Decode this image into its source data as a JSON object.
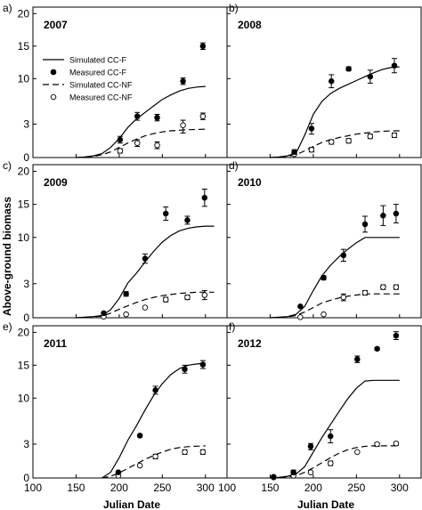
{
  "figure": {
    "ylabel": "Above-ground biomass",
    "xlabel": "Julian Date",
    "xticks": [
      100,
      150,
      200,
      250,
      300
    ],
    "yticks": [
      0,
      3,
      10,
      15,
      20
    ],
    "legend": [
      "Simulated CC-F",
      "Measured CC-F",
      "Simulated CC-NF",
      "Measured CC-NF"
    ]
  },
  "chart_data": [
    {
      "type": "scatter",
      "panel": "a)",
      "title": "2007",
      "xlim": [
        100,
        325
      ],
      "ylim": [
        0,
        21
      ],
      "sim_f": {
        "x": [
          150,
          160,
          170,
          180,
          190,
          200,
          210,
          220,
          230,
          240,
          250,
          260,
          270,
          280,
          290,
          300
        ],
        "y": [
          0,
          0.05,
          0.15,
          0.35,
          0.9,
          1.7,
          2.7,
          3.8,
          4.8,
          5.8,
          6.8,
          7.5,
          8.1,
          8.5,
          8.7,
          8.8
        ]
      },
      "sim_nf": {
        "x": [
          150,
          160,
          170,
          180,
          190,
          200,
          210,
          220,
          230,
          240,
          250,
          260,
          270,
          280,
          290,
          300
        ],
        "y": [
          0,
          0.04,
          0.1,
          0.25,
          0.5,
          0.9,
          1.3,
          1.65,
          1.95,
          2.15,
          2.3,
          2.4,
          2.45,
          2.5,
          2.52,
          2.55
        ]
      },
      "meas_f": [
        {
          "x": 201,
          "y": 1.6,
          "e": 0.3
        },
        {
          "x": 221,
          "y": 4.2,
          "e": 0.6
        },
        {
          "x": 244,
          "y": 4.0,
          "e": 0.5
        },
        {
          "x": 274,
          "y": 9.6,
          "e": 0.5
        },
        {
          "x": 297,
          "y": 15.0,
          "e": 0.5
        }
      ],
      "meas_nf": [
        {
          "x": 201,
          "y": 0.6,
          "e": 0.2
        },
        {
          "x": 221,
          "y": 1.3,
          "e": 0.3
        },
        {
          "x": 244,
          "y": 1.1,
          "e": 0.3
        },
        {
          "x": 274,
          "y": 2.9,
          "e": 0.7
        },
        {
          "x": 297,
          "y": 4.2,
          "e": 0.5
        }
      ]
    },
    {
      "type": "scatter",
      "panel": "b)",
      "title": "2008",
      "xlim": [
        100,
        325
      ],
      "ylim": [
        0,
        21
      ],
      "sim_f": {
        "x": [
          150,
          160,
          170,
          180,
          190,
          200,
          210,
          220,
          230,
          240,
          250,
          260,
          270,
          280,
          290,
          300
        ],
        "y": [
          0,
          0.05,
          0.15,
          0.4,
          2.0,
          4.5,
          6.5,
          7.7,
          8.5,
          9.1,
          9.7,
          10.3,
          10.9,
          11.4,
          11.7,
          11.8
        ]
      },
      "sim_nf": {
        "x": [
          150,
          160,
          170,
          180,
          190,
          200,
          210,
          220,
          230,
          240,
          250,
          260,
          270,
          280,
          290,
          300
        ],
        "y": [
          0,
          0.03,
          0.1,
          0.25,
          0.6,
          1.0,
          1.35,
          1.6,
          1.8,
          1.95,
          2.1,
          2.2,
          2.3,
          2.35,
          2.4,
          2.4
        ]
      },
      "meas_f": [
        {
          "x": 178,
          "y": 0.5,
          "e": 0.2
        },
        {
          "x": 198,
          "y": 2.6,
          "e": 0.5
        },
        {
          "x": 221,
          "y": 9.6,
          "e": 1.0
        },
        {
          "x": 241,
          "y": 11.5,
          "e": 0.3
        },
        {
          "x": 266,
          "y": 10.3,
          "e": 1.0
        },
        {
          "x": 294,
          "y": 12.0,
          "e": 1.1
        }
      ],
      "meas_nf": [
        {
          "x": 178,
          "y": 0.3,
          "e": 0.1
        },
        {
          "x": 198,
          "y": 0.7,
          "e": 0.2
        },
        {
          "x": 221,
          "y": 1.4,
          "e": 0.2
        },
        {
          "x": 241,
          "y": 1.5,
          "e": 0.2
        },
        {
          "x": 266,
          "y": 1.9,
          "e": 0.2
        },
        {
          "x": 294,
          "y": 2.0,
          "e": 0.2
        }
      ]
    },
    {
      "type": "scatter",
      "panel": "c)",
      "title": "2009",
      "xlim": [
        100,
        325
      ],
      "ylim": [
        0,
        21
      ],
      "sim_f": {
        "x": [
          150,
          160,
          170,
          180,
          190,
          200,
          210,
          220,
          230,
          240,
          250,
          260,
          270,
          280,
          290,
          300,
          310
        ],
        "y": [
          0,
          0.05,
          0.1,
          0.2,
          0.7,
          1.7,
          3.1,
          4.6,
          6.3,
          7.9,
          9.3,
          10.3,
          11.0,
          11.4,
          11.6,
          11.7,
          11.7
        ]
      },
      "sim_nf": {
        "x": [
          150,
          160,
          170,
          180,
          190,
          200,
          210,
          220,
          230,
          240,
          250,
          260,
          270,
          280,
          290,
          300,
          310
        ],
        "y": [
          0,
          0.03,
          0.08,
          0.15,
          0.4,
          0.75,
          1.05,
          1.35,
          1.6,
          1.8,
          1.95,
          2.05,
          2.15,
          2.2,
          2.25,
          2.25,
          2.25
        ]
      },
      "meas_f": [
        {
          "x": 182,
          "y": 0.4,
          "e": 0.1
        },
        {
          "x": 208,
          "y": 2.1,
          "e": 0.2
        },
        {
          "x": 230,
          "y": 6.8,
          "e": 0.7
        },
        {
          "x": 254,
          "y": 13.6,
          "e": 1.0
        },
        {
          "x": 279,
          "y": 12.6,
          "e": 0.6
        },
        {
          "x": 299,
          "y": 16.0,
          "e": 1.3
        }
      ],
      "meas_nf": [
        {
          "x": 182,
          "y": 0.1,
          "e": 0.05
        },
        {
          "x": 208,
          "y": 0.3,
          "e": 0.1
        },
        {
          "x": 230,
          "y": 0.9,
          "e": 0.1
        },
        {
          "x": 254,
          "y": 1.6,
          "e": 0.2
        },
        {
          "x": 279,
          "y": 1.8,
          "e": 0.2
        },
        {
          "x": 299,
          "y": 2.0,
          "e": 0.4
        }
      ]
    },
    {
      "type": "scatter",
      "panel": "d)",
      "title": "2010",
      "xlim": [
        100,
        325
      ],
      "ylim": [
        0,
        21
      ],
      "sim_f": {
        "x": [
          150,
          160,
          170,
          180,
          190,
          200,
          210,
          220,
          230,
          240,
          250,
          260,
          270,
          280,
          290,
          300
        ],
        "y": [
          0,
          0.05,
          0.1,
          0.3,
          1.0,
          2.4,
          4.2,
          5.8,
          7.1,
          8.2,
          9.2,
          10.0,
          10.0,
          10.0,
          10.0,
          10.0
        ]
      },
      "sim_nf": {
        "x": [
          150,
          160,
          170,
          180,
          190,
          200,
          210,
          220,
          230,
          240,
          250,
          260,
          270,
          280,
          290,
          300
        ],
        "y": [
          0,
          0.03,
          0.07,
          0.2,
          0.5,
          0.9,
          1.3,
          1.55,
          1.75,
          1.9,
          2.0,
          2.1,
          2.1,
          2.1,
          2.1,
          2.1
        ]
      },
      "meas_f": [
        {
          "x": 185,
          "y": 1.0,
          "e": 0.1
        },
        {
          "x": 212,
          "y": 3.9,
          "e": 0.3
        },
        {
          "x": 235,
          "y": 7.3,
          "e": 0.9
        },
        {
          "x": 260,
          "y": 12.0,
          "e": 1.2
        },
        {
          "x": 281,
          "y": 13.3,
          "e": 1.5
        },
        {
          "x": 296,
          "y": 13.6,
          "e": 1.4
        }
      ],
      "meas_nf": [
        {
          "x": 185,
          "y": 0.05,
          "e": 0.05
        },
        {
          "x": 212,
          "y": 0.3,
          "e": 0.1
        },
        {
          "x": 235,
          "y": 1.8,
          "e": 0.3
        },
        {
          "x": 260,
          "y": 2.2,
          "e": 0.2
        },
        {
          "x": 281,
          "y": 2.7,
          "e": 0.2
        },
        {
          "x": 296,
          "y": 2.7,
          "e": 0.2
        }
      ]
    },
    {
      "type": "scatter",
      "panel": "e)",
      "title": "2011",
      "xlim": [
        100,
        325
      ],
      "ylim": [
        0,
        21
      ],
      "sim_f": {
        "x": [
          180,
          190,
          200,
          210,
          220,
          230,
          240,
          250,
          260,
          270,
          280,
          290,
          300
        ],
        "y": [
          0,
          0.5,
          1.8,
          3.6,
          5.8,
          8.2,
          10.4,
          12.2,
          13.6,
          14.5,
          15.0,
          15.2,
          15.3
        ]
      },
      "sim_nf": {
        "x": [
          180,
          190,
          200,
          210,
          220,
          230,
          240,
          250,
          260,
          270,
          280,
          290,
          300
        ],
        "y": [
          0,
          0.15,
          0.45,
          0.85,
          1.25,
          1.65,
          2.0,
          2.3,
          2.55,
          2.7,
          2.78,
          2.82,
          2.85
        ]
      },
      "meas_f": [
        {
          "x": 199,
          "y": 0.5,
          "e": 0.1
        },
        {
          "x": 224,
          "y": 4.3,
          "e": 0.2
        },
        {
          "x": 242,
          "y": 11.2,
          "e": 0.6
        },
        {
          "x": 276,
          "y": 14.4,
          "e": 0.6
        },
        {
          "x": 297,
          "y": 15.1,
          "e": 0.6
        }
      ],
      "meas_nf": [
        {
          "x": 199,
          "y": 0.2,
          "e": 0.05
        },
        {
          "x": 224,
          "y": 1.1,
          "e": 0.1
        },
        {
          "x": 242,
          "y": 1.9,
          "e": 0.2
        },
        {
          "x": 276,
          "y": 2.3,
          "e": 0.2
        },
        {
          "x": 297,
          "y": 2.3,
          "e": 0.2
        }
      ]
    },
    {
      "type": "scatter",
      "panel": "f)",
      "title": "2012",
      "xlim": [
        100,
        325
      ],
      "ylim": [
        0,
        21
      ],
      "sim_f": {
        "x": [
          150,
          160,
          170,
          180,
          190,
          200,
          210,
          220,
          230,
          240,
          250,
          260,
          270,
          280,
          290,
          300
        ],
        "y": [
          0,
          0.05,
          0.15,
          0.35,
          1.0,
          2.3,
          4.0,
          6.0,
          8.0,
          9.9,
          11.5,
          12.6,
          12.7,
          12.7,
          12.7,
          12.7
        ]
      },
      "sim_nf": {
        "x": [
          150,
          160,
          170,
          180,
          190,
          200,
          210,
          220,
          230,
          240,
          250,
          260,
          270,
          280,
          290,
          300
        ],
        "y": [
          0,
          0.03,
          0.1,
          0.2,
          0.5,
          0.9,
          1.35,
          1.8,
          2.2,
          2.5,
          2.7,
          2.8,
          2.85,
          2.85,
          2.85,
          2.85
        ]
      },
      "meas_f": [
        {
          "x": 154,
          "y": 0.1,
          "e": 0.05
        },
        {
          "x": 177,
          "y": 0.5,
          "e": 0.2
        },
        {
          "x": 197,
          "y": 2.8,
          "e": 0.3
        },
        {
          "x": 220,
          "y": 4.2,
          "e": 1.0
        },
        {
          "x": 251,
          "y": 15.9,
          "e": 0.5
        },
        {
          "x": 274,
          "y": 17.5,
          "e": 0.2
        },
        {
          "x": 296,
          "y": 19.5,
          "e": 0.6
        }
      ],
      "meas_nf": [
        {
          "x": 154,
          "y": 0.05,
          "e": 0.02
        },
        {
          "x": 177,
          "y": 0.2,
          "e": 0.1
        },
        {
          "x": 197,
          "y": 0.5,
          "e": 0.1
        },
        {
          "x": 220,
          "y": 1.3,
          "e": 0.2
        },
        {
          "x": 251,
          "y": 2.3,
          "e": 0.1
        },
        {
          "x": 274,
          "y": 3.0,
          "e": 0.2
        },
        {
          "x": 296,
          "y": 3.1,
          "e": 0.2
        }
      ]
    }
  ]
}
